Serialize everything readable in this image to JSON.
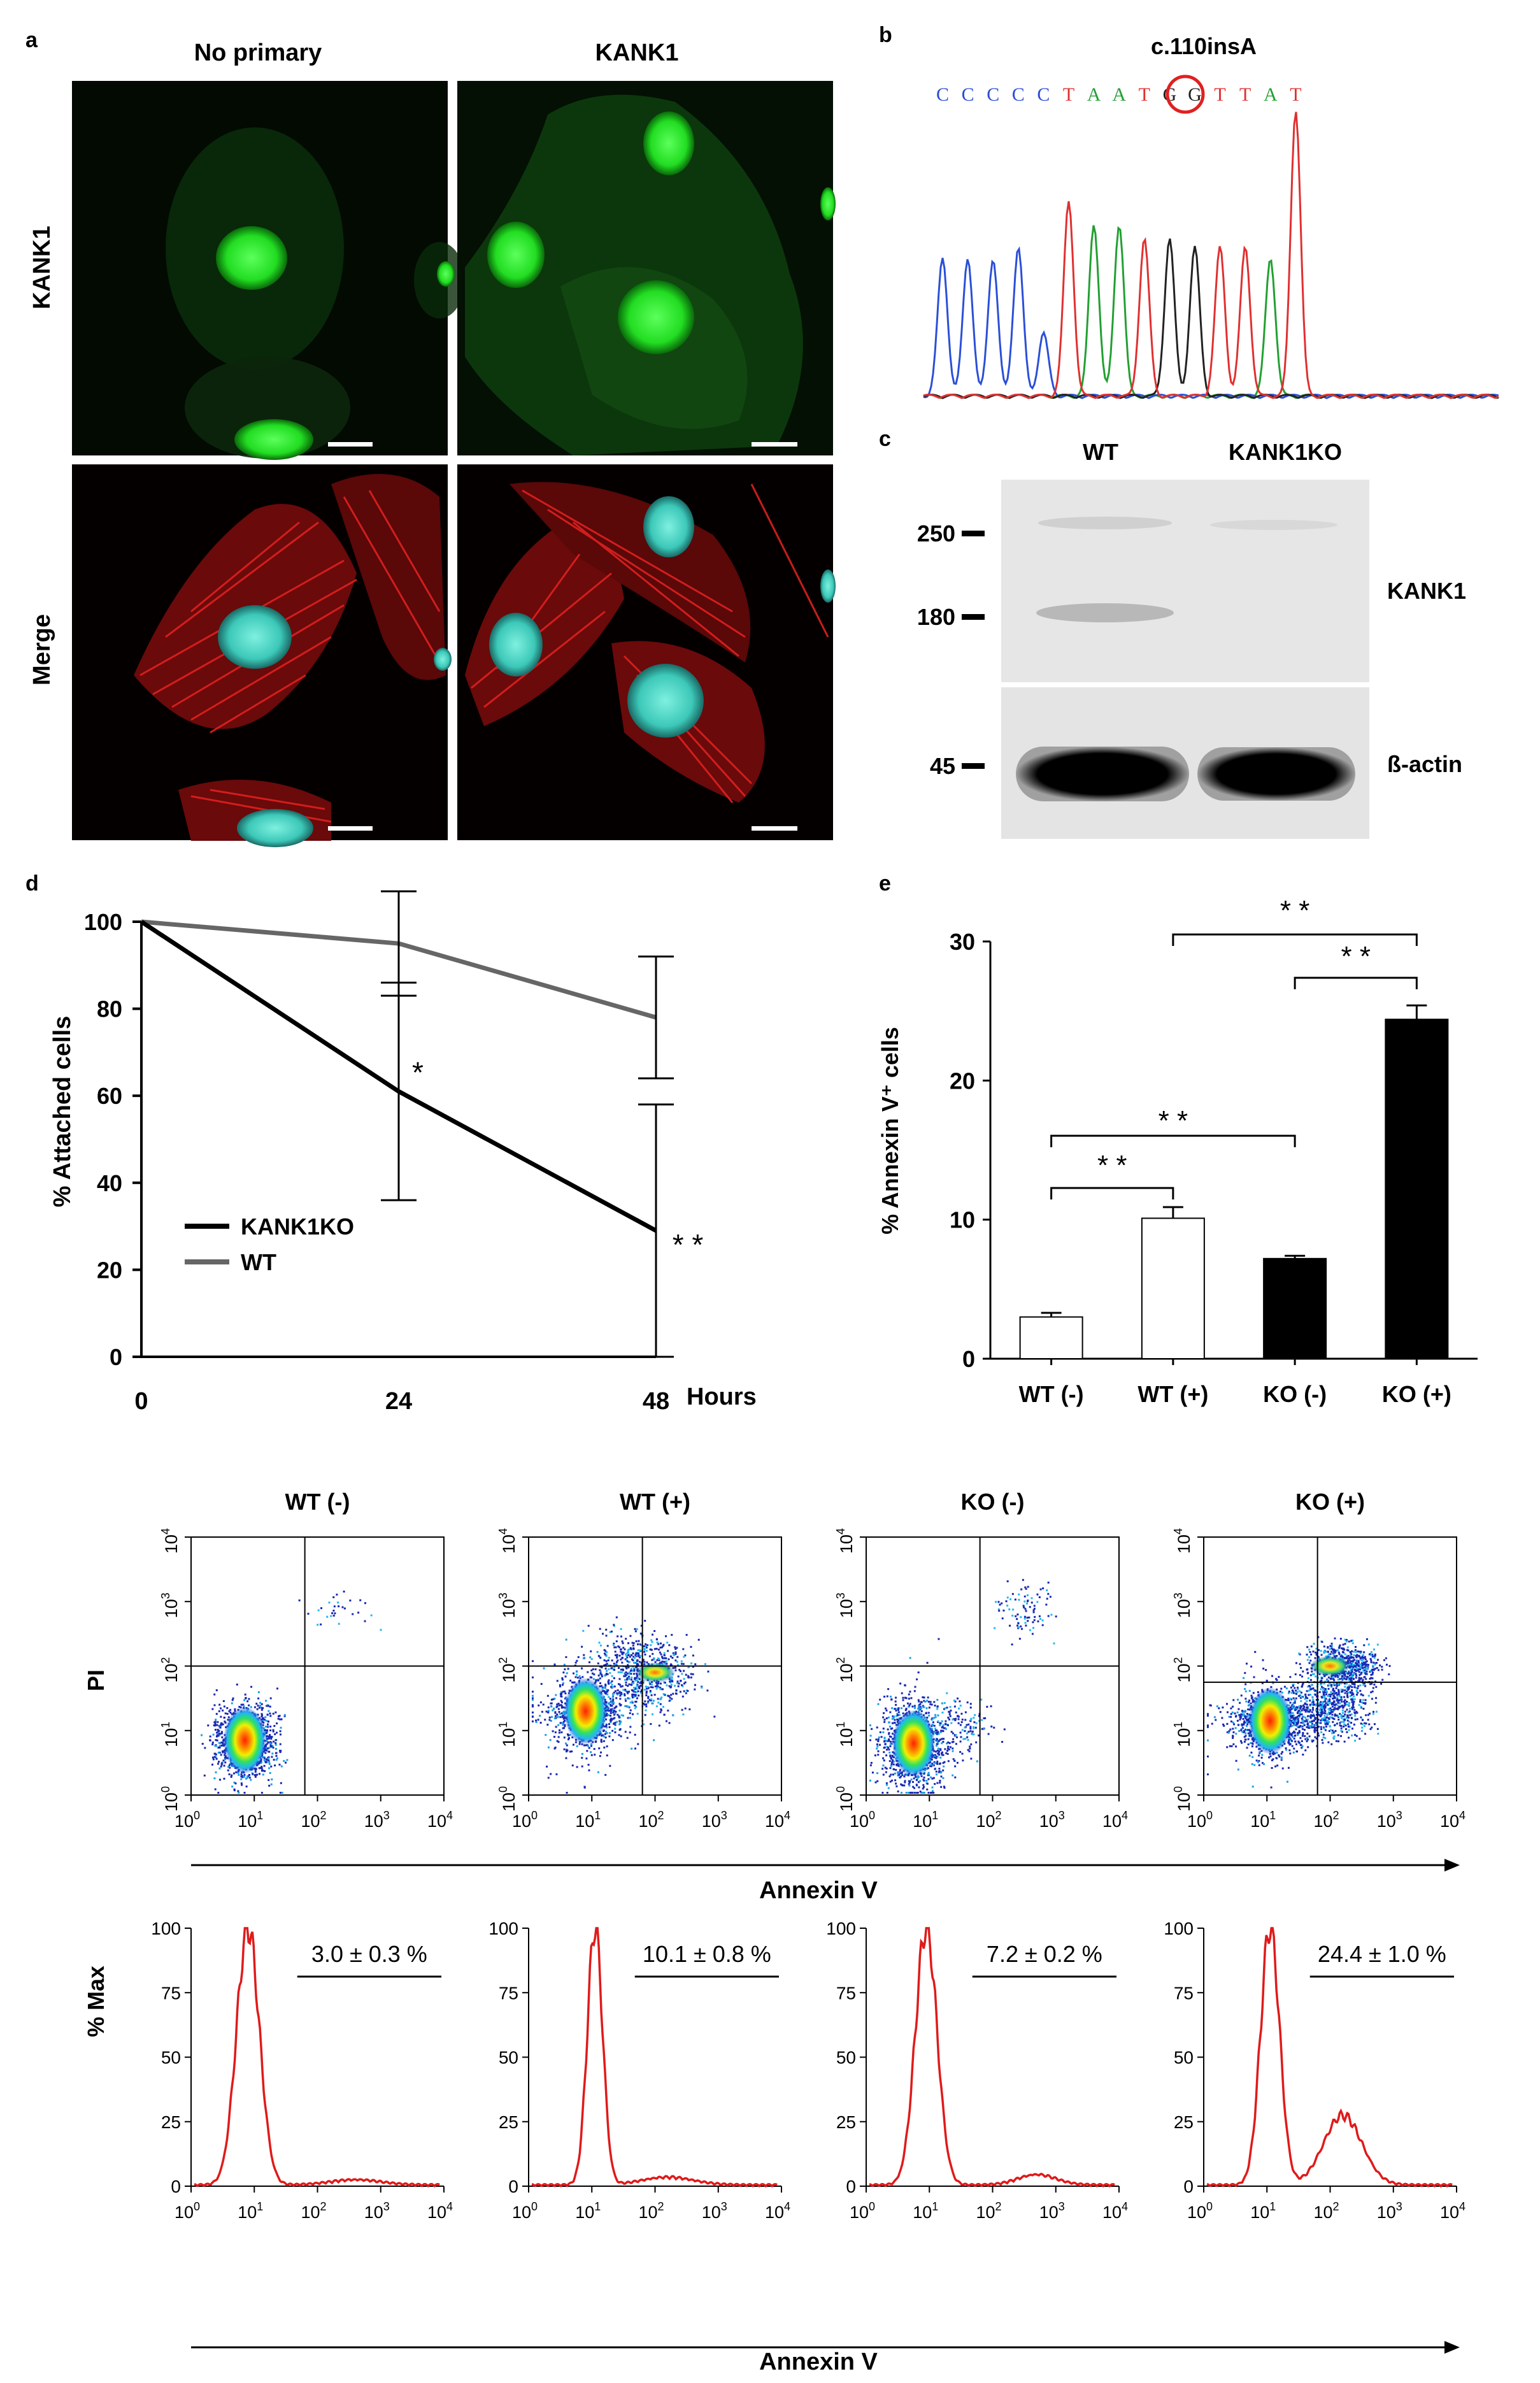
{
  "panel_labels": {
    "a": "a",
    "b": "b",
    "c": "c",
    "d": "d",
    "e": "e"
  },
  "panel_a": {
    "col_labels": [
      "No primary",
      "KANK1"
    ],
    "row_labels": [
      "KANK1",
      "Merge"
    ]
  },
  "panel_b": {
    "mutation": "c.110insA",
    "bases": [
      "C",
      "C",
      "C",
      "C",
      "C",
      "T",
      "A",
      "A",
      "T",
      "G",
      "G",
      "T",
      "T",
      "A",
      "T"
    ],
    "highlight_index": 6,
    "base_colors": {
      "A": "#22a032",
      "C": "#2b4fd8",
      "G": "#222222",
      "T": "#e03030"
    }
  },
  "panel_c": {
    "lanes": [
      "WT",
      "KANK1KO"
    ],
    "markers": [
      "250",
      "180",
      "45"
    ],
    "blots": [
      "KANK1",
      "ß-actin"
    ]
  },
  "chart_data": [
    {
      "type": "line",
      "panel": "d",
      "x": [
        0,
        24,
        48
      ],
      "x_ticks": [
        "0",
        "24",
        "48"
      ],
      "xlabel": "Hours",
      "ylabel": "% Attached cells",
      "y_ticks": [
        "0",
        "20",
        "40",
        "60",
        "80",
        "100"
      ],
      "ylim": [
        0,
        100
      ],
      "series": [
        {
          "name": "KANK1KO",
          "values": [
            100,
            61,
            29
          ],
          "err": [
            0,
            25,
            29
          ],
          "color": "#000000"
        },
        {
          "name": "WT",
          "values": [
            100,
            95,
            78
          ],
          "err": [
            0,
            12,
            14
          ],
          "color": "#666666"
        }
      ],
      "annotations": [
        "*",
        "* *"
      ]
    },
    {
      "type": "bar",
      "panel": "e",
      "categories": [
        "WT (-)",
        "WT (+)",
        "KO (-)",
        "KO (+)"
      ],
      "values": [
        3.0,
        10.1,
        7.2,
        24.4
      ],
      "err": [
        0.3,
        0.8,
        0.2,
        1.0
      ],
      "fills": [
        "#ffffff",
        "#ffffff",
        "#000000",
        "#000000"
      ],
      "ylabel": "% Annexin V⁺ cells",
      "y_ticks": [
        "0",
        "10",
        "20",
        "30"
      ],
      "ylim": [
        0,
        30
      ],
      "significance": [
        "* *",
        "* *",
        "* *",
        "* *"
      ]
    },
    {
      "type": "scatter",
      "panel": "flow-dot-plots",
      "titles": [
        "WT (-)",
        "WT (+)",
        "KO (-)",
        "KO (+)"
      ],
      "ylabel": "PI",
      "xlabel": "Annexin V",
      "tick_exponents": [
        "0",
        "1",
        "2",
        "3",
        "4"
      ],
      "tick_base": "10"
    },
    {
      "type": "line",
      "panel": "flow-histograms",
      "ylabel": "% Max",
      "xlabel": "Annexin V",
      "y_ticks": [
        "0",
        "25",
        "50",
        "75",
        "100"
      ],
      "tick_exponents": [
        "0",
        "1",
        "2",
        "3",
        "4"
      ],
      "tick_base": "10",
      "gate_labels": [
        "3.0 ± 0.3 %",
        "10.1 ± 0.8 %",
        "7.2 ± 0.2 %",
        "24.4 ± 1.0 %"
      ]
    }
  ]
}
